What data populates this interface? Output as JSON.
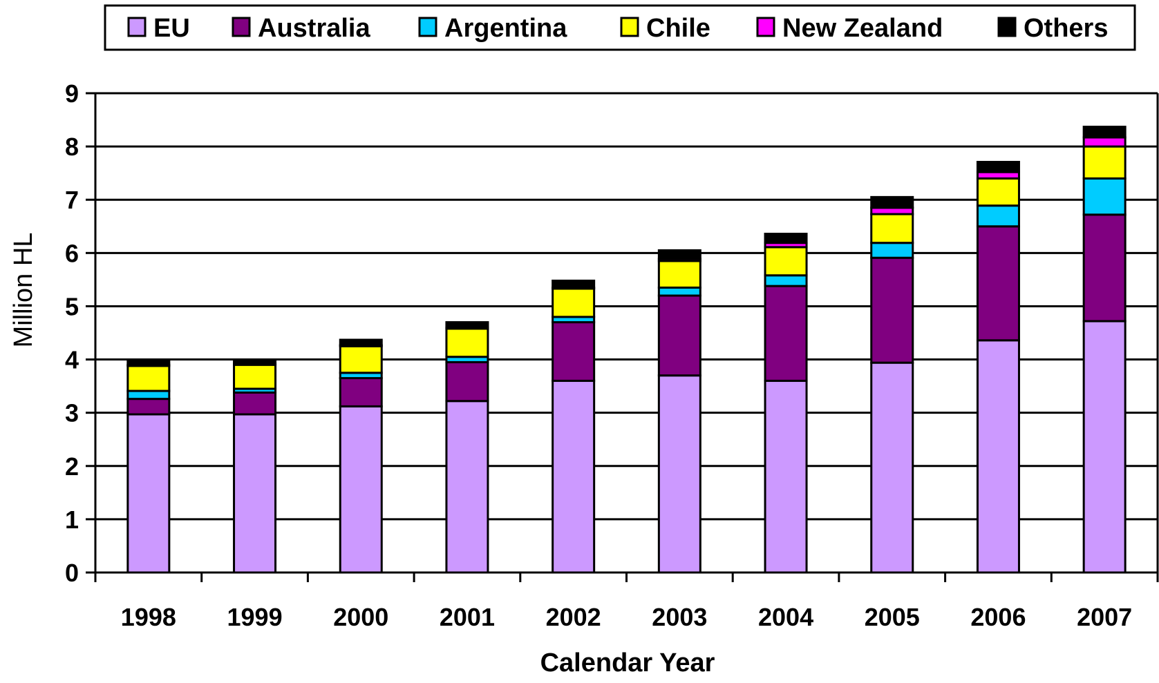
{
  "chart_data": {
    "type": "bar",
    "stacked": true,
    "title": "",
    "xlabel": "Calendar Year",
    "ylabel": "Million HL",
    "ylim": [
      0,
      9
    ],
    "yticks": [
      "0",
      "1",
      "2",
      "3",
      "4",
      "5",
      "6",
      "7",
      "8",
      "9"
    ],
    "grid": true,
    "legend_position": "top",
    "categories": [
      "1998",
      "1999",
      "2000",
      "2001",
      "2002",
      "2003",
      "2004",
      "2005",
      "2006",
      "2007"
    ],
    "series": [
      {
        "name": "EU",
        "color": "#CC99FF",
        "values": [
          2.97,
          2.97,
          3.12,
          3.22,
          3.6,
          3.7,
          3.6,
          3.94,
          4.36,
          4.72
        ]
      },
      {
        "name": "Australia",
        "color": "#800080",
        "values": [
          0.29,
          0.41,
          0.53,
          0.73,
          1.1,
          1.5,
          1.78,
          1.97,
          2.14,
          2.0
        ]
      },
      {
        "name": "Argentina",
        "color": "#00CCFF",
        "values": [
          0.15,
          0.07,
          0.1,
          0.1,
          0.1,
          0.15,
          0.2,
          0.28,
          0.39,
          0.68
        ]
      },
      {
        "name": "Chile",
        "color": "#FFFF00",
        "values": [
          0.47,
          0.45,
          0.5,
          0.53,
          0.53,
          0.5,
          0.53,
          0.54,
          0.51,
          0.6
        ]
      },
      {
        "name": "New Zealand",
        "color": "#FF00FF",
        "values": [
          0.02,
          0.02,
          0.02,
          0.02,
          0.02,
          0.04,
          0.08,
          0.12,
          0.12,
          0.17
        ]
      },
      {
        "name": "Others",
        "color": "#000000",
        "values": [
          0.07,
          0.06,
          0.1,
          0.1,
          0.13,
          0.16,
          0.17,
          0.2,
          0.19,
          0.2
        ]
      }
    ]
  }
}
